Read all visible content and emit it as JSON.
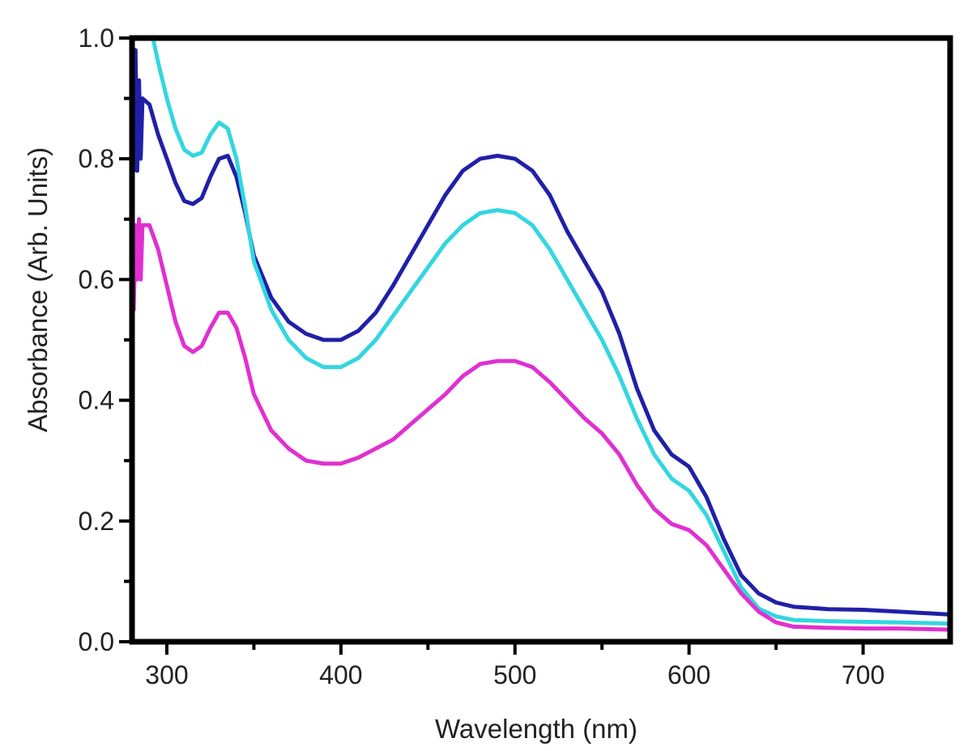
{
  "chart_data": {
    "type": "line",
    "title": "",
    "xlabel": "Wavelength (nm)",
    "ylabel": "Absorbance (Arb. Units)",
    "xlim": [
      280,
      750
    ],
    "ylim": [
      0.0,
      1.0
    ],
    "x_ticks": [
      300,
      400,
      500,
      600,
      700
    ],
    "x_tick_labels": [
      "300",
      "400",
      "500",
      "600",
      "700"
    ],
    "x_minor_ticks": [
      350,
      450,
      550,
      650
    ],
    "y_ticks": [
      0.0,
      0.2,
      0.4,
      0.6,
      0.8,
      1.0
    ],
    "y_tick_labels": [
      "0.0",
      "0.2",
      "0.4",
      "0.6",
      "0.8",
      "1.0"
    ],
    "y_minor_ticks": [
      0.1,
      0.3,
      0.5,
      0.7,
      0.9
    ],
    "grid": false,
    "legend": "none",
    "series": [
      {
        "color": "#2020a8",
        "points": [
          [
            281,
            0.78
          ],
          [
            282,
            0.98
          ],
          [
            283,
            0.78
          ],
          [
            284,
            0.93
          ],
          [
            285,
            0.8
          ],
          [
            286,
            0.9
          ],
          [
            290,
            0.89
          ],
          [
            295,
            0.84
          ],
          [
            300,
            0.8
          ],
          [
            305,
            0.76
          ],
          [
            310,
            0.73
          ],
          [
            315,
            0.725
          ],
          [
            320,
            0.735
          ],
          [
            325,
            0.77
          ],
          [
            330,
            0.8
          ],
          [
            335,
            0.805
          ],
          [
            340,
            0.77
          ],
          [
            345,
            0.71
          ],
          [
            350,
            0.64
          ],
          [
            360,
            0.57
          ],
          [
            370,
            0.53
          ],
          [
            380,
            0.51
          ],
          [
            390,
            0.5
          ],
          [
            400,
            0.5
          ],
          [
            410,
            0.515
          ],
          [
            420,
            0.545
          ],
          [
            430,
            0.59
          ],
          [
            440,
            0.64
          ],
          [
            450,
            0.69
          ],
          [
            460,
            0.74
          ],
          [
            470,
            0.78
          ],
          [
            480,
            0.8
          ],
          [
            490,
            0.805
          ],
          [
            500,
            0.8
          ],
          [
            510,
            0.78
          ],
          [
            520,
            0.74
          ],
          [
            530,
            0.68
          ],
          [
            540,
            0.63
          ],
          [
            550,
            0.58
          ],
          [
            560,
            0.51
          ],
          [
            570,
            0.42
          ],
          [
            580,
            0.35
          ],
          [
            590,
            0.31
          ],
          [
            600,
            0.29
          ],
          [
            610,
            0.24
          ],
          [
            620,
            0.17
          ],
          [
            630,
            0.11
          ],
          [
            640,
            0.08
          ],
          [
            650,
            0.065
          ],
          [
            660,
            0.058
          ],
          [
            680,
            0.054
          ],
          [
            700,
            0.053
          ],
          [
            720,
            0.05
          ],
          [
            750,
            0.045
          ]
        ]
      },
      {
        "color": "#33d6e0",
        "points": [
          [
            292,
            1.0
          ],
          [
            295,
            0.96
          ],
          [
            300,
            0.9
          ],
          [
            305,
            0.85
          ],
          [
            310,
            0.815
          ],
          [
            315,
            0.805
          ],
          [
            320,
            0.81
          ],
          [
            325,
            0.84
          ],
          [
            330,
            0.86
          ],
          [
            335,
            0.85
          ],
          [
            340,
            0.8
          ],
          [
            345,
            0.72
          ],
          [
            350,
            0.63
          ],
          [
            360,
            0.55
          ],
          [
            370,
            0.5
          ],
          [
            380,
            0.47
          ],
          [
            390,
            0.455
          ],
          [
            400,
            0.455
          ],
          [
            410,
            0.47
          ],
          [
            420,
            0.5
          ],
          [
            430,
            0.54
          ],
          [
            440,
            0.58
          ],
          [
            450,
            0.62
          ],
          [
            460,
            0.66
          ],
          [
            470,
            0.69
          ],
          [
            480,
            0.71
          ],
          [
            490,
            0.715
          ],
          [
            500,
            0.71
          ],
          [
            510,
            0.69
          ],
          [
            520,
            0.65
          ],
          [
            530,
            0.6
          ],
          [
            540,
            0.55
          ],
          [
            550,
            0.5
          ],
          [
            560,
            0.44
          ],
          [
            570,
            0.37
          ],
          [
            580,
            0.31
          ],
          [
            590,
            0.27
          ],
          [
            600,
            0.25
          ],
          [
            610,
            0.21
          ],
          [
            620,
            0.15
          ],
          [
            630,
            0.09
          ],
          [
            640,
            0.055
          ],
          [
            650,
            0.042
          ],
          [
            660,
            0.036
          ],
          [
            680,
            0.034
          ],
          [
            700,
            0.033
          ],
          [
            720,
            0.032
          ],
          [
            750,
            0.03
          ]
        ]
      },
      {
        "color": "#e030d0",
        "points": [
          [
            281,
            0.55
          ],
          [
            282,
            0.69
          ],
          [
            283,
            0.6
          ],
          [
            284,
            0.7
          ],
          [
            285,
            0.6
          ],
          [
            286,
            0.69
          ],
          [
            290,
            0.69
          ],
          [
            295,
            0.65
          ],
          [
            300,
            0.59
          ],
          [
            305,
            0.53
          ],
          [
            310,
            0.49
          ],
          [
            315,
            0.48
          ],
          [
            320,
            0.49
          ],
          [
            325,
            0.52
          ],
          [
            330,
            0.545
          ],
          [
            335,
            0.545
          ],
          [
            340,
            0.52
          ],
          [
            345,
            0.47
          ],
          [
            350,
            0.41
          ],
          [
            360,
            0.35
          ],
          [
            370,
            0.32
          ],
          [
            380,
            0.3
          ],
          [
            390,
            0.295
          ],
          [
            400,
            0.295
          ],
          [
            410,
            0.305
          ],
          [
            420,
            0.32
          ],
          [
            430,
            0.335
          ],
          [
            440,
            0.36
          ],
          [
            450,
            0.385
          ],
          [
            460,
            0.41
          ],
          [
            470,
            0.44
          ],
          [
            480,
            0.46
          ],
          [
            490,
            0.465
          ],
          [
            500,
            0.465
          ],
          [
            510,
            0.455
          ],
          [
            520,
            0.43
          ],
          [
            530,
            0.4
          ],
          [
            540,
            0.37
          ],
          [
            550,
            0.345
          ],
          [
            560,
            0.31
          ],
          [
            570,
            0.26
          ],
          [
            580,
            0.22
          ],
          [
            590,
            0.195
          ],
          [
            600,
            0.185
          ],
          [
            610,
            0.16
          ],
          [
            620,
            0.12
          ],
          [
            630,
            0.08
          ],
          [
            640,
            0.05
          ],
          [
            650,
            0.032
          ],
          [
            660,
            0.025
          ],
          [
            680,
            0.023
          ],
          [
            700,
            0.022
          ],
          [
            720,
            0.022
          ],
          [
            750,
            0.02
          ]
        ]
      }
    ]
  }
}
